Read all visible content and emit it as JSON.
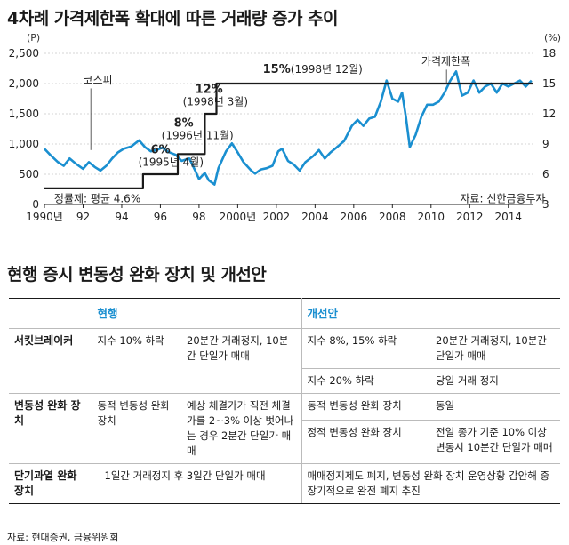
{
  "title": "4차례 가격제한폭 확대에 따른 거래량 증가 추이",
  "chart_data": {
    "type": "line",
    "left_axis": {
      "unit": "(P)",
      "ticks": [
        "2,500",
        "2,000",
        "1,500",
        "1,000",
        "500",
        "0"
      ],
      "range": [
        0,
        2500
      ]
    },
    "right_axis": {
      "unit": "(%)",
      "ticks": [
        "18",
        "15",
        "12",
        "9",
        "6",
        "3"
      ],
      "range": [
        3,
        18
      ]
    },
    "x_ticks": [
      "1990년",
      "92",
      "94",
      "96",
      "98",
      "2000년",
      "2002",
      "2004",
      "2006",
      "2008",
      "2010",
      "2012",
      "2014"
    ],
    "x_range": [
      1990,
      2015.3
    ],
    "series": [
      {
        "name": "코스피",
        "axis": "left",
        "points": [
          [
            1990.0,
            920
          ],
          [
            1990.3,
            820
          ],
          [
            1990.7,
            700
          ],
          [
            1991.0,
            640
          ],
          [
            1991.3,
            760
          ],
          [
            1991.6,
            680
          ],
          [
            1992.0,
            590
          ],
          [
            1992.3,
            700
          ],
          [
            1992.6,
            620
          ],
          [
            1992.9,
            560
          ],
          [
            1993.2,
            640
          ],
          [
            1993.5,
            760
          ],
          [
            1993.8,
            860
          ],
          [
            1994.1,
            920
          ],
          [
            1994.5,
            960
          ],
          [
            1994.9,
            1060
          ],
          [
            1995.2,
            950
          ],
          [
            1995.5,
            880
          ],
          [
            1995.8,
            900
          ],
          [
            1996.1,
            940
          ],
          [
            1996.4,
            870
          ],
          [
            1996.8,
            820
          ],
          [
            1997.1,
            720
          ],
          [
            1997.5,
            760
          ],
          [
            1997.8,
            560
          ],
          [
            1998.0,
            420
          ],
          [
            1998.3,
            520
          ],
          [
            1998.5,
            400
          ],
          [
            1998.8,
            330
          ],
          [
            1999.0,
            600
          ],
          [
            1999.4,
            880
          ],
          [
            1999.7,
            1010
          ],
          [
            2000.0,
            860
          ],
          [
            2000.3,
            700
          ],
          [
            2000.7,
            560
          ],
          [
            2000.9,
            510
          ],
          [
            2001.2,
            580
          ],
          [
            2001.5,
            600
          ],
          [
            2001.8,
            640
          ],
          [
            2002.1,
            880
          ],
          [
            2002.3,
            920
          ],
          [
            2002.6,
            720
          ],
          [
            2002.9,
            660
          ],
          [
            2003.2,
            560
          ],
          [
            2003.5,
            700
          ],
          [
            2003.9,
            800
          ],
          [
            2004.2,
            900
          ],
          [
            2004.5,
            760
          ],
          [
            2004.8,
            860
          ],
          [
            2005.1,
            940
          ],
          [
            2005.5,
            1050
          ],
          [
            2005.9,
            1300
          ],
          [
            2006.2,
            1400
          ],
          [
            2006.5,
            1300
          ],
          [
            2006.8,
            1420
          ],
          [
            2007.1,
            1450
          ],
          [
            2007.4,
            1700
          ],
          [
            2007.7,
            2050
          ],
          [
            2008.0,
            1750
          ],
          [
            2008.3,
            1700
          ],
          [
            2008.5,
            1850
          ],
          [
            2008.7,
            1450
          ],
          [
            2008.9,
            950
          ],
          [
            2009.2,
            1150
          ],
          [
            2009.5,
            1450
          ],
          [
            2009.8,
            1650
          ],
          [
            2010.1,
            1650
          ],
          [
            2010.4,
            1700
          ],
          [
            2010.7,
            1850
          ],
          [
            2011.0,
            2050
          ],
          [
            2011.3,
            2200
          ],
          [
            2011.6,
            1800
          ],
          [
            2011.9,
            1850
          ],
          [
            2012.2,
            2050
          ],
          [
            2012.5,
            1850
          ],
          [
            2012.8,
            1950
          ],
          [
            2013.1,
            2000
          ],
          [
            2013.4,
            1850
          ],
          [
            2013.7,
            2000
          ],
          [
            2014.0,
            1950
          ],
          [
            2014.3,
            2000
          ],
          [
            2014.6,
            2050
          ],
          [
            2014.9,
            1950
          ],
          [
            2015.2,
            2050
          ]
        ]
      },
      {
        "name": "가격제한폭",
        "axis": "right",
        "points": [
          [
            1990.0,
            4.6
          ],
          [
            1995.1,
            4.6
          ],
          [
            1995.1,
            6
          ],
          [
            1996.9,
            6
          ],
          [
            1996.9,
            8
          ],
          [
            1998.3,
            8
          ],
          [
            1998.3,
            12
          ],
          [
            1998.9,
            12
          ],
          [
            1998.9,
            15
          ],
          [
            2015.3,
            15
          ]
        ]
      }
    ],
    "annotations": [
      {
        "text": "코스피",
        "x": 1992.0,
        "y": 2000
      },
      {
        "text": "가격제한폭",
        "x": 2009.5,
        "y": 2310
      },
      {
        "bold": "15%",
        "text": "(1998년 12월)",
        "x": 2001.3,
        "y": 2180
      },
      {
        "bold": "12%",
        "text": "(1998년 3월)",
        "x": 1997.8,
        "y": 1845
      },
      {
        "bold": "8%",
        "text": "(1996년 11월)",
        "x": 1996.7,
        "y": 1290
      },
      {
        "bold": "6%",
        "text": "(1995년 4월)",
        "x": 1995.5,
        "y": 845
      },
      {
        "text": "정률제: 평균 4.6%",
        "x": 1990.5,
        "y": 40
      },
      {
        "text": "자료: 신한금융투자",
        "x": 2011.5,
        "y": 40
      }
    ]
  },
  "table_title": "현행 증시 변동성 완화 장치 및 개선안",
  "table": {
    "col_headers": {
      "current": "현행",
      "proposed": "개선안"
    },
    "circuit_breaker": {
      "label": "서킷브레이커",
      "cur_a": "지수 10% 하락",
      "cur_b": "20분간 거래정지, 10분간 단일가 매매",
      "new_a1": "지수 8%, 15% 하락",
      "new_b1": "20분간 거래정지, 10분간 단일가 매매",
      "new_a2": "지수 20% 하락",
      "new_b2": "당일 거래 정지"
    },
    "volatility": {
      "label": "변동성 완화 장치",
      "cur_a": "동적 변동성 완화 장치",
      "cur_b": "예상 체결가가 직전 체결가를 2~3% 이상 벗어나는 경우 2분간 단일가 매매",
      "new_a1": "동적 변동성 완화 장치",
      "new_b1": "동일",
      "new_a2": "정적 변동성 완화 장치",
      "new_b2": "전일 종가 기준 10% 이상 변동시 10분간 단일가 매매"
    },
    "short_term": {
      "label": "단기과열 완화 장치",
      "cur": "1일간 거래정지 후 3일간 단일가 매매",
      "new": "매매정지제도 폐지, 변동성 완화 장치 운영상황 감안해 중장기적으로 완전 폐지 추진"
    }
  },
  "source": "자료: 현대증권, 금융위원회",
  "colors": {
    "kospi": "#1a8fd0",
    "limit": "#1a1a1a",
    "header": "#1a8fd0"
  }
}
